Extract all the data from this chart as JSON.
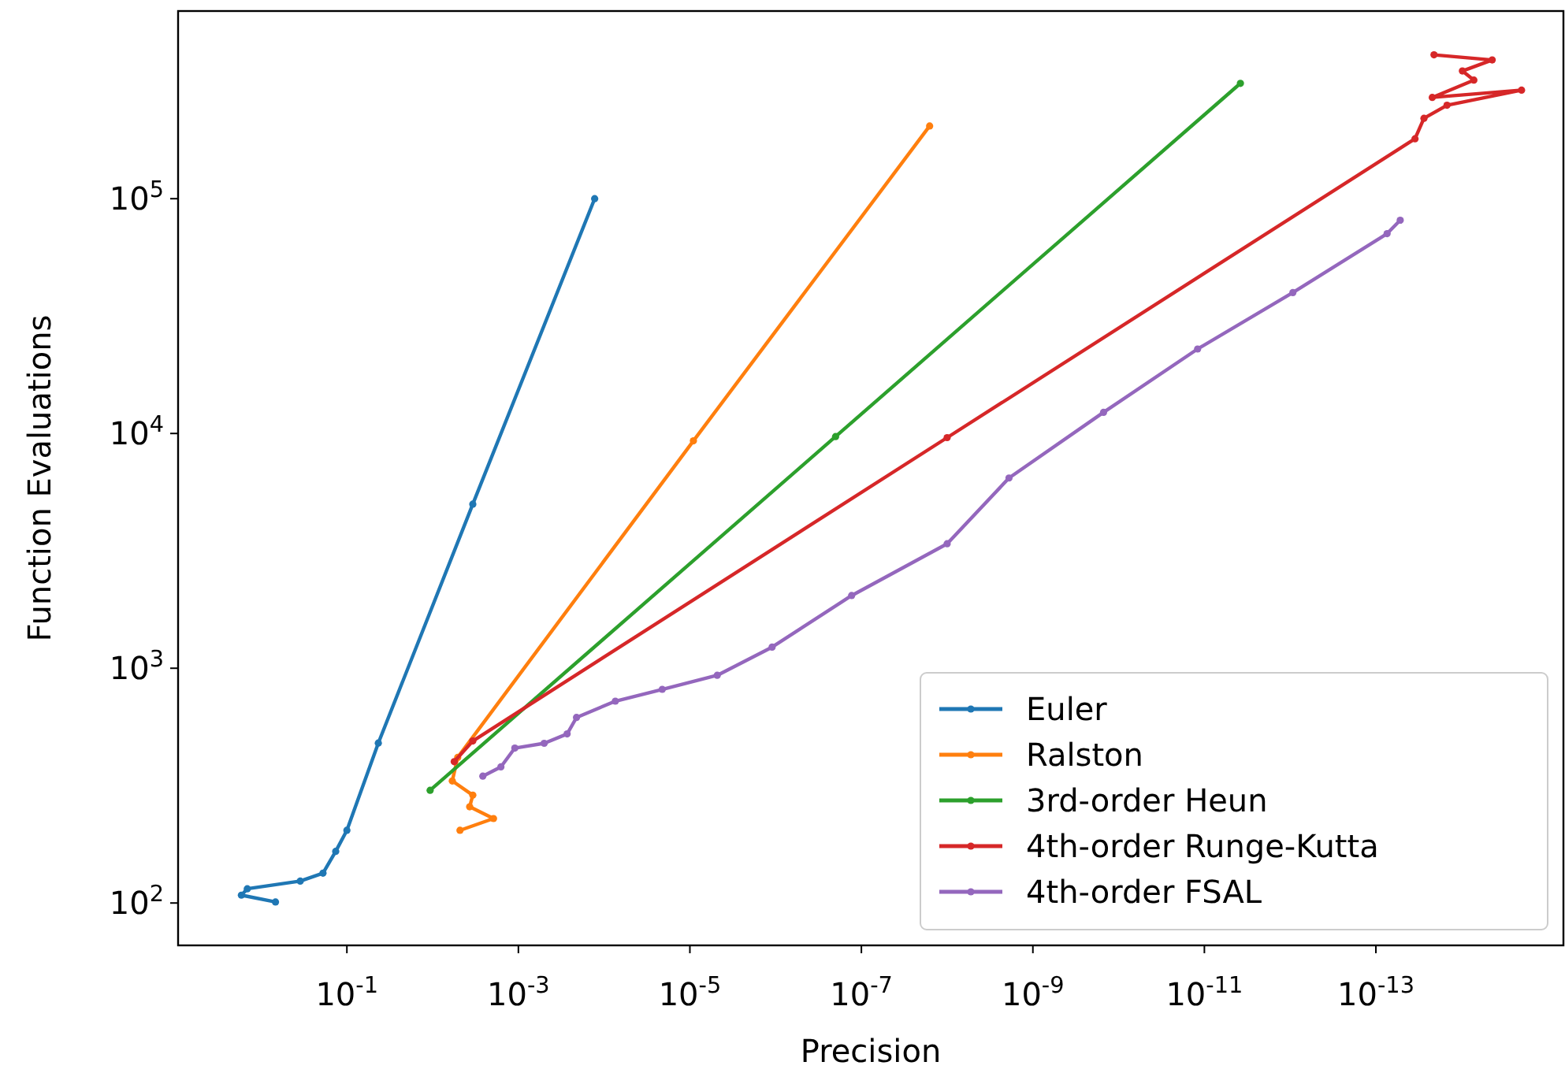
{
  "chart_data": {
    "type": "line",
    "xlabel": "Precision",
    "ylabel": "Function Evaluations",
    "log": "xy",
    "marker": "circle",
    "legend": "bottom right",
    "grid": false,
    "xlim": [
      9.3,
      6.5e-16
    ],
    "ylim": [
      66,
      630000
    ],
    "xticks": [
      {
        "value": 0.1,
        "label": "10$^{-1}$"
      },
      {
        "value": 0.001,
        "label": "10$^{-3}$"
      },
      {
        "value": 1e-05,
        "label": "10$^{-5}$"
      },
      {
        "value": 1e-07,
        "label": "10$^{-7}$"
      },
      {
        "value": 1e-09,
        "label": "10$^{-9}$"
      },
      {
        "value": 1e-11,
        "label": "10$^{-11}$"
      },
      {
        "value": 1e-13,
        "label": "10$^{-13}$"
      }
    ],
    "yticks": [
      {
        "value": 100,
        "label": "10$^{2}$"
      },
      {
        "value": 1000,
        "label": "10$^{3}$"
      },
      {
        "value": 10000,
        "label": "10$^{4}$"
      },
      {
        "value": 100000,
        "label": "10$^{5}$"
      }
    ],
    "series": [
      {
        "name": "Euler",
        "color": "#1f77b4",
        "x": [
          0.68,
          1.7,
          1.45,
          0.35,
          0.19,
          0.135,
          0.1,
          0.043,
          0.0034,
          0.000129
        ],
        "values": [
          101,
          108,
          115,
          124,
          134,
          166,
          204,
          480,
          5000,
          100000
        ]
      },
      {
        "name": "Ralston",
        "color": "#ff7f0e",
        "x": [
          0.0048,
          0.00195,
          0.0037,
          0.0034,
          0.0059,
          0.0051,
          9.1e-06,
          1.6e-08
        ],
        "values": [
          204,
          229,
          257,
          288,
          331,
          417,
          9300,
          204000
        ]
      },
      {
        "name": "3rd-order Heun",
        "color": "#2ca02c",
        "x": [
          0.0107,
          2e-07,
          3.8e-12
        ],
        "values": [
          302,
          9700,
          310000
        ]
      },
      {
        "name": "4th-order Runge-Kutta",
        "color": "#d62728",
        "x": [
          0.0056,
          0.0034,
          1e-08,
          3.5e-14,
          2.75e-14,
          1.48e-14,
          2e-15,
          2.2e-14,
          7.2e-15,
          9.8e-15,
          4.4e-15,
          2.1e-14
        ],
        "values": [
          400,
          490,
          9600,
          180000,
          220000,
          250000,
          290000,
          270000,
          320000,
          350000,
          390000,
          410000
        ]
      },
      {
        "name": "4th-order FSAL",
        "color": "#9467bd",
        "x": [
          0.0026,
          0.0016,
          0.0011,
          0.0005,
          0.00027,
          0.00021,
          7.4e-05,
          2.1e-05,
          4.8e-06,
          1.1e-06,
          1.3e-07,
          1e-08,
          1.9e-09,
          1.5e-10,
          1.2e-11,
          9.3e-13,
          7.4e-14,
          5.2e-14
        ],
        "values": [
          347,
          380,
          457,
          479,
          525,
          617,
          724,
          813,
          933,
          1230,
          2040,
          3390,
          6460,
          12300,
          22900,
          39800,
          71000,
          81000
        ]
      }
    ]
  }
}
